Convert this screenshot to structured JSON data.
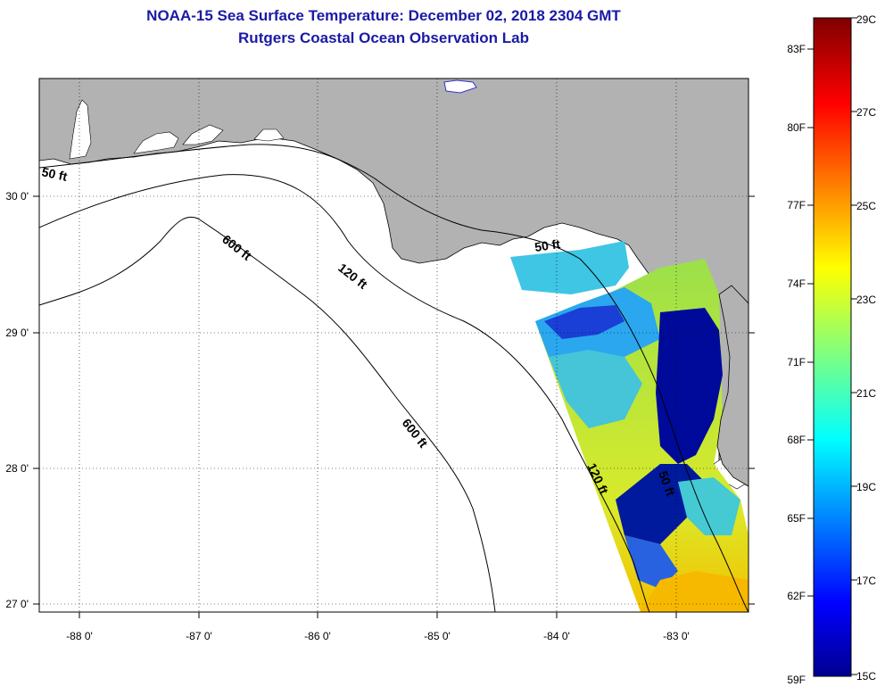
{
  "title": "NOAA-15 Sea Surface Temperature:  December 02, 2018 2304 GMT",
  "subtitle": "Rutgers Coastal Ocean Observation Lab",
  "map": {
    "x_ticks": [
      "-88 0'",
      "-87 0'",
      "-86 0'",
      "-85 0'",
      "-84 0'",
      "-83 0'"
    ],
    "y_ticks": [
      "30 0'",
      "29 0'",
      "28 0'",
      "27 0'"
    ],
    "contours": {
      "shelf_50_west": "50 ft",
      "shelf_50_east": "50 ft",
      "shelf_50_south": "50 ft",
      "shelf_120_north": "120 ft",
      "shelf_120_south": "120 ft",
      "deep_600_north": "600 ft",
      "deep_600_south": "600 ft"
    },
    "colors": {
      "land": "#b2b2b2",
      "water_no_data": "#ffffff"
    }
  },
  "colorbar": {
    "fahrenheit": [
      "83F",
      "80F",
      "77F",
      "74F",
      "71F",
      "68F",
      "65F",
      "62F",
      "59F"
    ],
    "celsius": [
      "29C",
      "27C",
      "25C",
      "23C",
      "21C",
      "19C",
      "17C",
      "15C"
    ],
    "min_c": 15,
    "max_c": 29
  }
}
